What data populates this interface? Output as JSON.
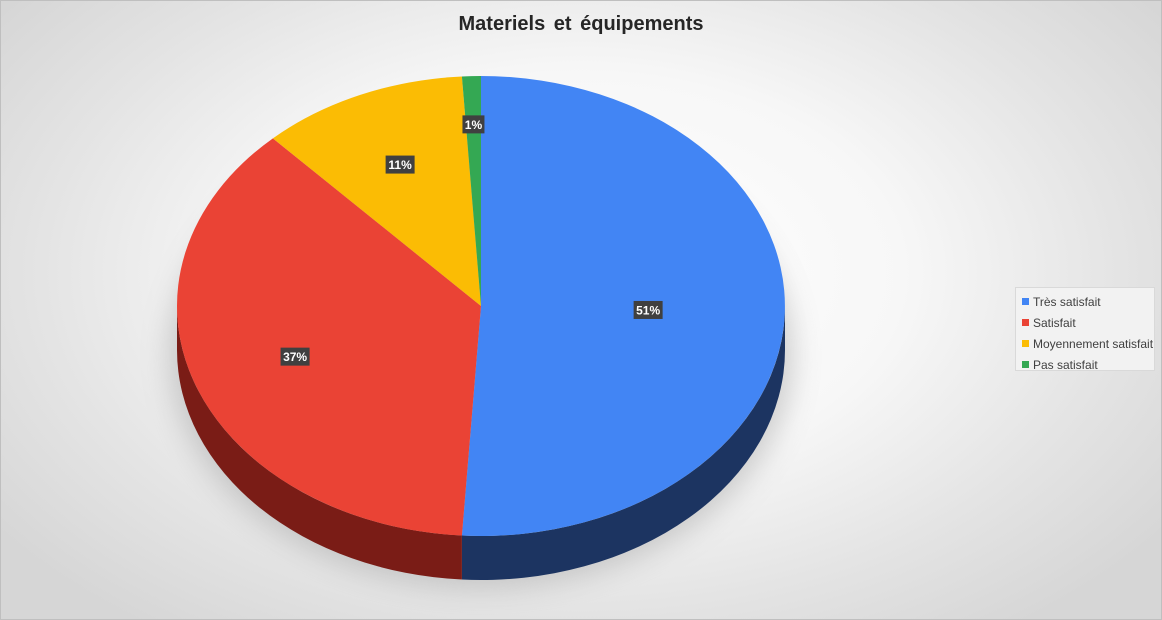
{
  "chart_data": {
    "type": "pie",
    "title": "Materiels  et équipements",
    "categories": [
      "Très satisfait",
      "Satisfait",
      "Moyennement satisfait",
      "Pas satisfait"
    ],
    "values": [
      51,
      37,
      11,
      1
    ],
    "data_labels": [
      "51%",
      "37%",
      "11%",
      "1%"
    ],
    "colors": [
      "#4285f4",
      "#ea4335",
      "#fbbc04",
      "#34a853"
    ],
    "side_colors": [
      "#1c3461",
      "#7a1c16",
      "#7a5c00",
      "#1b5a2a"
    ],
    "legend_position": "right",
    "style": "3d"
  }
}
